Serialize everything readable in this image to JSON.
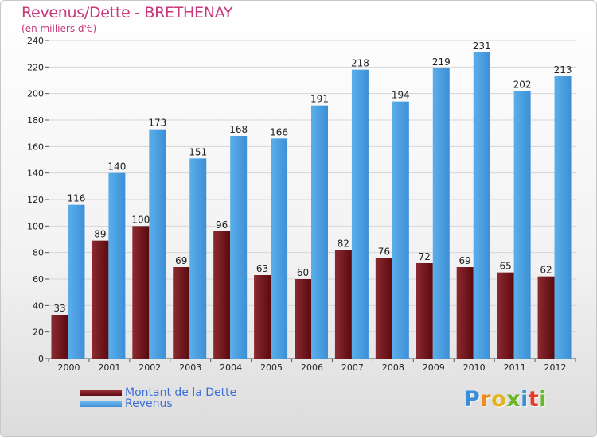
{
  "title": "Revenus/Dette - BRETHENAY",
  "subtitle": "(en milliers d'€)",
  "logo": "Proxiti",
  "colors": {
    "dette": "#7a1820",
    "revenus": "#4a9fe4",
    "title": "#c8387a",
    "legend_text": "#3a6fd8"
  },
  "chart_data": {
    "type": "bar",
    "categories": [
      "2000",
      "2001",
      "2002",
      "2003",
      "2004",
      "2005",
      "2006",
      "2007",
      "2008",
      "2009",
      "2010",
      "2011",
      "2012"
    ],
    "series": [
      {
        "name": "Montant de la Dette",
        "values": [
          33,
          89,
          100,
          69,
          96,
          63,
          60,
          82,
          76,
          72,
          69,
          65,
          62
        ]
      },
      {
        "name": "Revenus",
        "values": [
          116,
          140,
          173,
          151,
          168,
          166,
          191,
          218,
          194,
          219,
          231,
          202,
          213
        ]
      }
    ],
    "yticks": [
      0,
      20,
      40,
      60,
      80,
      100,
      120,
      140,
      160,
      180,
      200,
      220,
      240
    ],
    "ylim": [
      0,
      240
    ],
    "grid": true,
    "legend": "bottom-left"
  }
}
